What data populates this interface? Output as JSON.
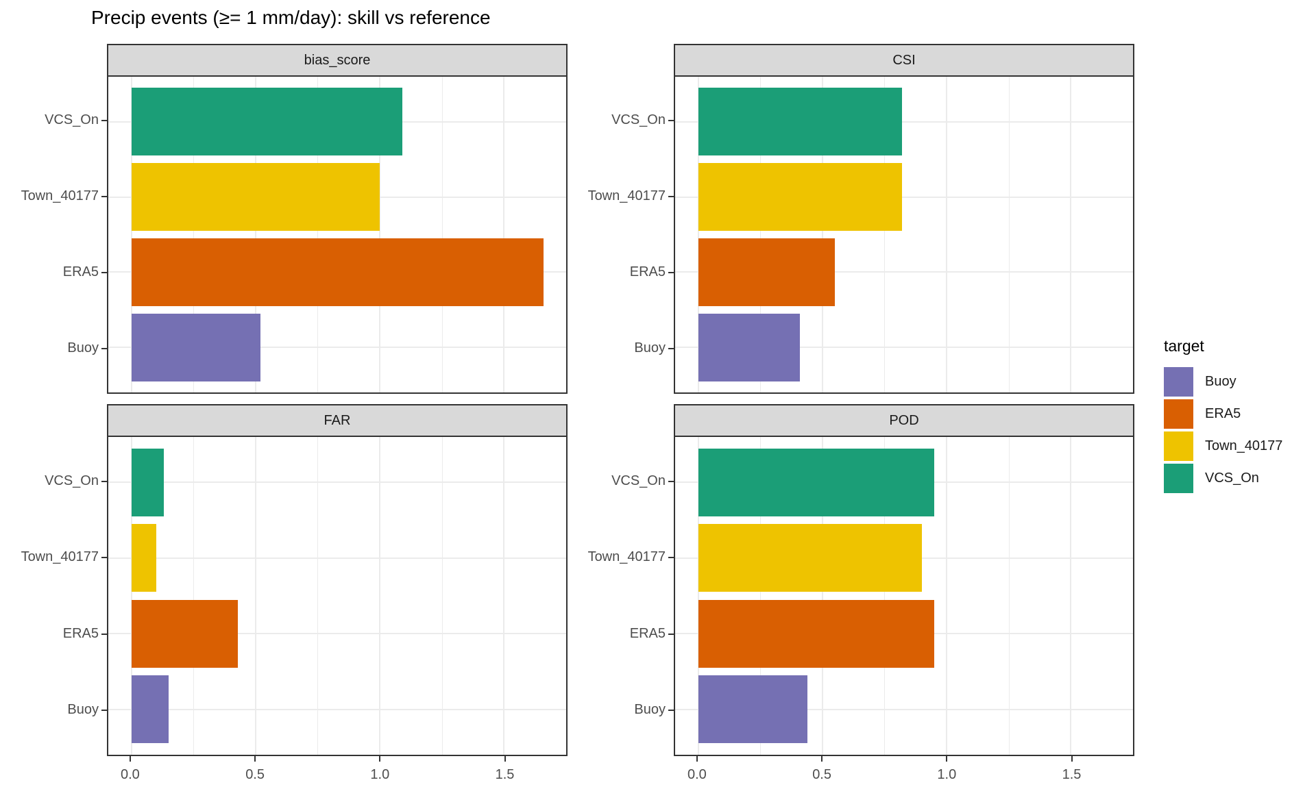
{
  "title": "Precip events (≥= 1 mm/day): skill vs reference",
  "legend": {
    "title": "target",
    "items": [
      {
        "label": "Buoy",
        "color": "#7570B3"
      },
      {
        "label": "ERA5",
        "color": "#D95F02"
      },
      {
        "label": "Town_40177",
        "color": "#EEC300"
      },
      {
        "label": "VCS_On",
        "color": "#1B9E77"
      }
    ]
  },
  "chart_data": {
    "type": "bar",
    "orientation": "horizontal",
    "title": "Precip events (≥= 1 mm/day): skill vs reference",
    "facet_layout": [
      "bias_score",
      "CSI",
      "FAR",
      "POD"
    ],
    "categories_top_to_bottom": [
      "VCS_On",
      "Town_40177",
      "ERA5",
      "Buoy"
    ],
    "colors": {
      "VCS_On": "#1B9E77",
      "Town_40177": "#EEC300",
      "ERA5": "#D95F02",
      "Buoy": "#7570B3"
    },
    "facets": [
      {
        "title": "bias_score",
        "values": [
          1.09,
          1.0,
          1.66,
          0.52
        ]
      },
      {
        "title": "CSI",
        "values": [
          0.82,
          0.82,
          0.55,
          0.41
        ]
      },
      {
        "title": "FAR",
        "values": [
          0.13,
          0.1,
          0.43,
          0.15
        ]
      },
      {
        "title": "POD",
        "values": [
          0.95,
          0.9,
          0.95,
          0.44
        ]
      }
    ],
    "x_tick_values": [
      0.0,
      0.5,
      1.0,
      1.5
    ],
    "x_tick_labels": [
      "0.0",
      "0.5",
      "1.0",
      "1.5"
    ],
    "x_minor_gridlines": [
      0.25,
      0.75,
      1.25
    ],
    "xlim": [
      -0.093,
      1.751
    ],
    "grid": "major+minor",
    "legend_position": "right",
    "panel_strip_background": "#D9D9D9",
    "gridline_color": "#EBEBEB",
    "axis_text_color": "#4D4D4D"
  }
}
